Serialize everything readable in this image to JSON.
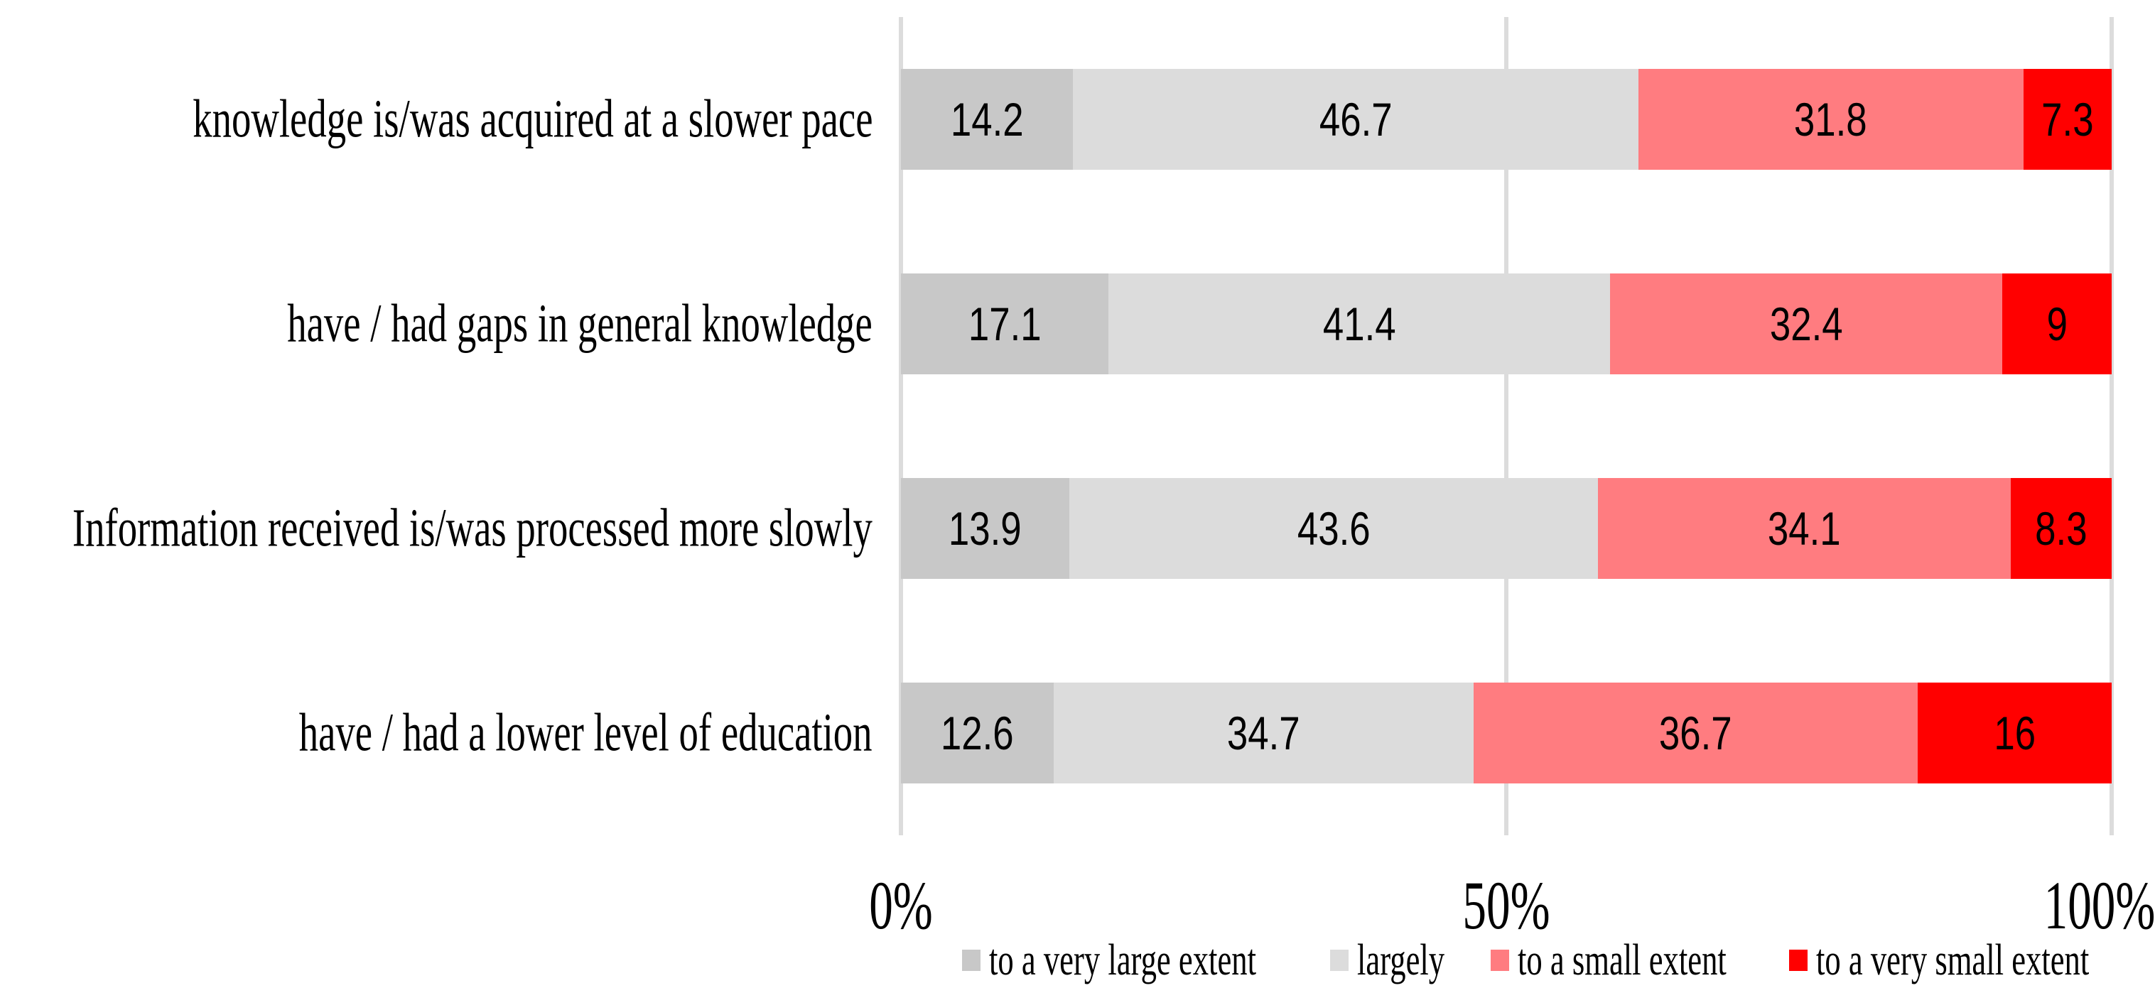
{
  "chart_data": {
    "type": "bar",
    "orientation": "horizontal-stacked",
    "title": "",
    "xlabel": "",
    "ylabel": "",
    "categories": [
      "knowledge is/was acquired at a slower pace",
      "have / had gaps in general knowledge",
      "Information received is/was processed more slowly",
      "have / had a lower level of education"
    ],
    "series": [
      {
        "name": "to a very large extent",
        "color": "#c8c8c8",
        "values": [
          14.2,
          17.1,
          13.9,
          12.6
        ]
      },
      {
        "name": "largely",
        "color": "#dcdcdc",
        "values": [
          46.7,
          41.4,
          43.6,
          34.7
        ]
      },
      {
        "name": "to a small extent",
        "color": "#ff7c80",
        "values": [
          31.8,
          32.4,
          34.1,
          36.7
        ]
      },
      {
        "name": "to a very small extent",
        "color": "#ff0000",
        "values": [
          7.3,
          9,
          8.3,
          16
        ]
      }
    ],
    "x_axis": {
      "ticks": [
        "0%",
        "50%",
        "100%"
      ],
      "range": [
        0,
        100
      ]
    },
    "grid": true,
    "gridline_color": "#dcdcdc",
    "value_label_color": "#000000",
    "legend_position": "bottom"
  }
}
